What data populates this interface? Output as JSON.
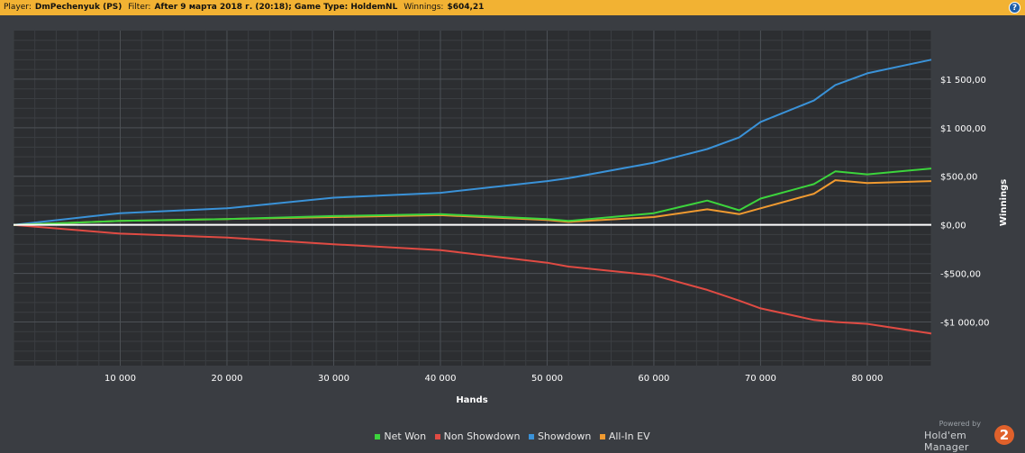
{
  "header": {
    "player_label": "Player:",
    "player_value": "DmPechenyuk (PS)",
    "filter_label": "Filter:",
    "filter_value": "After 9 марта 2018 г. (20:18); Game Type: HoldemNL",
    "winnings_label": "Winnings:",
    "winnings_value": "$604,21",
    "help_icon": "question-mark-icon",
    "help_symbol": "?"
  },
  "chart_data": {
    "type": "line",
    "xlabel": "Hands",
    "ylabel": "Winnings",
    "xlim": [
      0,
      86000
    ],
    "ylim": [
      -1450,
      2000
    ],
    "x_ticks": [
      10000,
      20000,
      30000,
      40000,
      50000,
      60000,
      70000,
      80000
    ],
    "x_tick_labels": [
      "10 000",
      "20 000",
      "30 000",
      "40 000",
      "50 000",
      "60 000",
      "70 000",
      "80 000"
    ],
    "y_ticks": [
      1500,
      1000,
      500,
      0,
      -500,
      -1000
    ],
    "y_tick_labels": [
      "$1 500,00",
      "$1 000,00",
      "$500,00",
      "$0,00",
      "-$500,00",
      "-$1 000,00"
    ],
    "grid": true,
    "legend_position": "bottom",
    "x": [
      0,
      10000,
      20000,
      30000,
      40000,
      50000,
      52000,
      60000,
      65000,
      68000,
      70000,
      75000,
      77000,
      80000,
      86000
    ],
    "series": [
      {
        "name": "Net Won",
        "color": "#3cd43c",
        "values": [
          0,
          40,
          60,
          90,
          110,
          60,
          40,
          120,
          250,
          150,
          270,
          420,
          550,
          520,
          580
        ]
      },
      {
        "name": "Non Showdown",
        "color": "#e04b43",
        "values": [
          0,
          -90,
          -130,
          -200,
          -260,
          -390,
          -430,
          -520,
          -670,
          -780,
          -860,
          -980,
          -1000,
          -1020,
          -1120
        ]
      },
      {
        "name": "Showdown",
        "color": "#3a92d8",
        "values": [
          0,
          120,
          170,
          280,
          330,
          450,
          480,
          640,
          780,
          900,
          1060,
          1280,
          1440,
          1560,
          1700
        ]
      },
      {
        "name": "All-In EV",
        "color": "#f09a30",
        "values": [
          0,
          40,
          60,
          80,
          100,
          50,
          30,
          80,
          160,
          110,
          170,
          320,
          460,
          430,
          450
        ]
      }
    ]
  },
  "legend": [
    {
      "label": "Net Won",
      "color": "#3cd43c"
    },
    {
      "label": "Non Showdown",
      "color": "#e04b43"
    },
    {
      "label": "Showdown",
      "color": "#3a92d8"
    },
    {
      "label": "All-In EV",
      "color": "#f09a30"
    }
  ],
  "brand": {
    "powered_by": "Powered by",
    "name": "Hold'em Manager",
    "logo_text": "2"
  }
}
